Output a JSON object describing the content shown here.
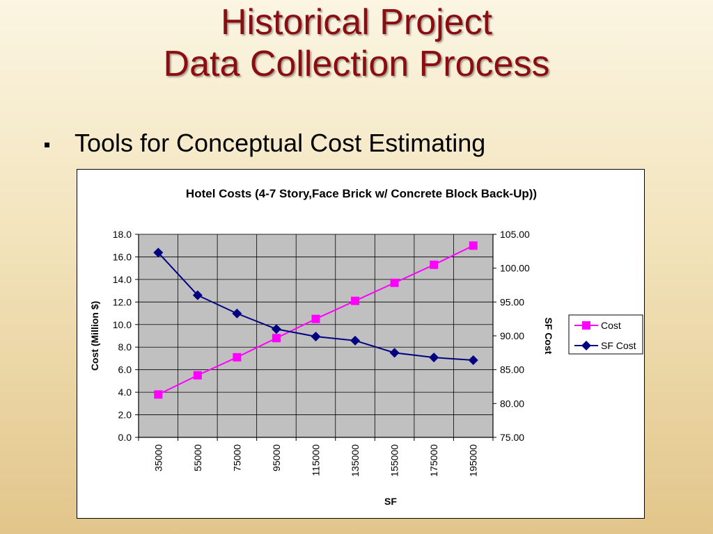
{
  "slide": {
    "title_line1": "Historical Project",
    "title_line2": "Data Collection Process",
    "bullet": "Tools for Conceptual Cost Estimating"
  },
  "chart_data": {
    "type": "line",
    "title": "Hotel Costs (4-7 Story,Face Brick w/ Concrete Block Back-Up))",
    "xlabel": "SF",
    "ylabel": "Cost (Million $)",
    "y2label": "SF Cost",
    "categories": [
      "35000",
      "55000",
      "75000",
      "95000",
      "115000",
      "135000",
      "155000",
      "175000",
      "195000"
    ],
    "ylim": [
      0,
      18
    ],
    "yticks": [
      "0.0",
      "2.0",
      "4.0",
      "6.0",
      "8.0",
      "10.0",
      "12.0",
      "14.0",
      "16.0",
      "18.0"
    ],
    "y2lim": [
      75,
      105
    ],
    "y2ticks": [
      "75.00",
      "80.00",
      "85.00",
      "90.00",
      "95.00",
      "100.00",
      "105.00"
    ],
    "grid": true,
    "plot_background": "#c0c0c0",
    "legend_position": "right",
    "series": [
      {
        "name": "Cost",
        "axis": "left",
        "color": "#ff00ff",
        "marker": "square",
        "values": [
          3.8,
          5.5,
          7.1,
          8.8,
          10.5,
          12.1,
          13.7,
          15.3,
          17.0
        ]
      },
      {
        "name": "SF Cost",
        "axis": "right",
        "color": "#000080",
        "marker": "diamond",
        "values": [
          102.3,
          96.0,
          93.3,
          91.0,
          89.9,
          89.3,
          87.5,
          86.8,
          86.4
        ]
      }
    ]
  }
}
